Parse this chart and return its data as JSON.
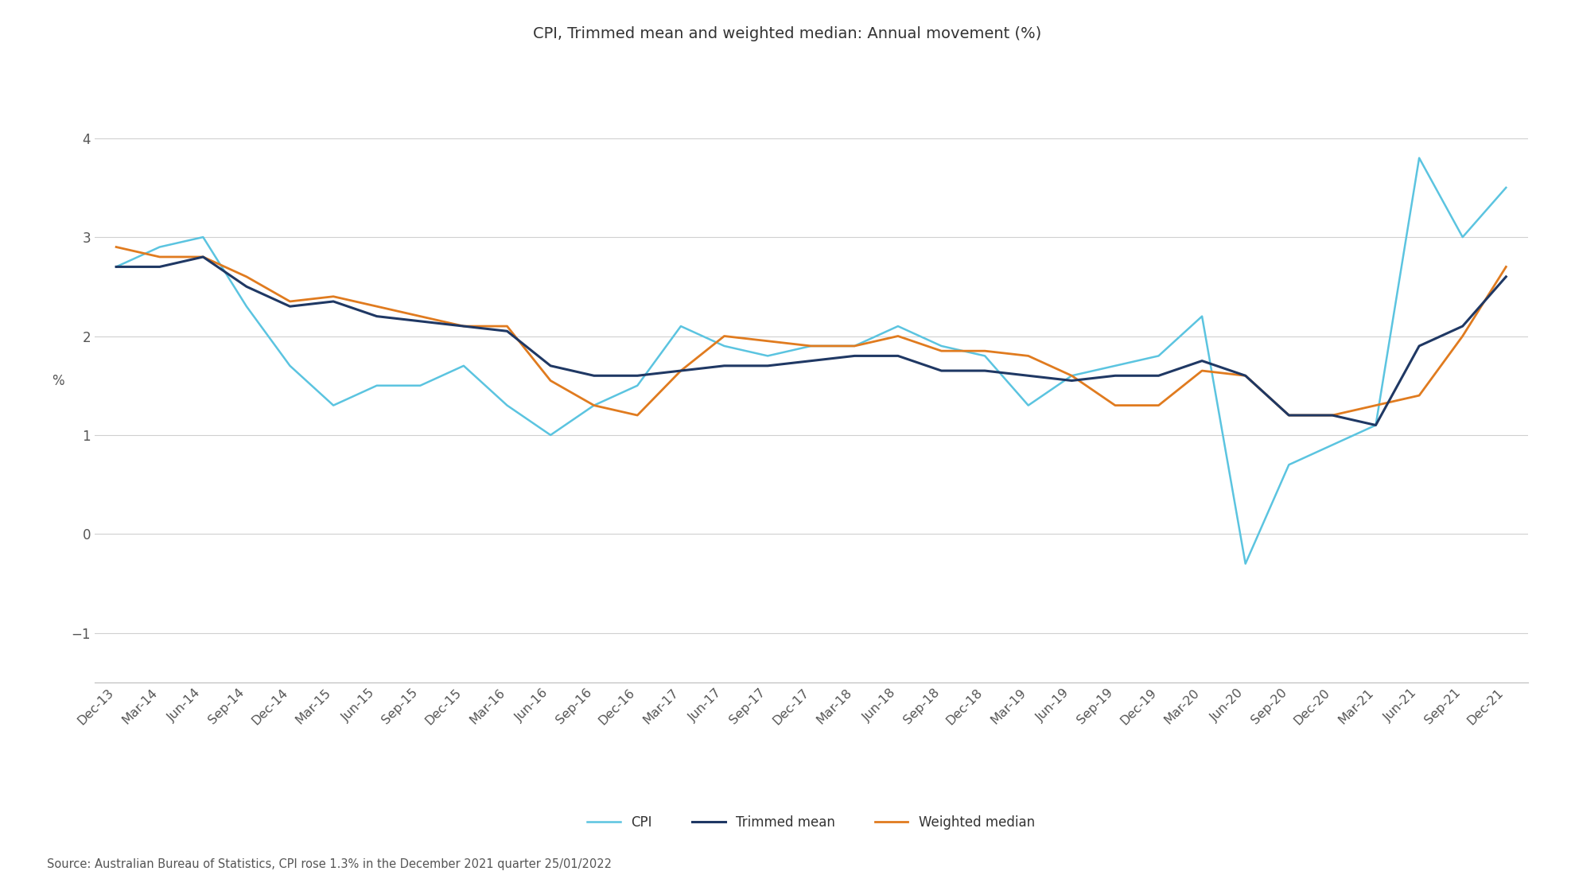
{
  "title": "CPI, Trimmed mean and weighted median: Annual movement (%)",
  "ylabel": "%",
  "source": "Source: Australian Bureau of Statistics, CPI rose 1.3% in the December 2021 quarter 25/01/2022",
  "ylim": [
    -1.5,
    4.6
  ],
  "yticks": [
    -1,
    0,
    1,
    2,
    3,
    4
  ],
  "background_color": "#ffffff",
  "grid_color": "#d0d0d0",
  "cpi_color": "#5bc4e0",
  "trimmed_color": "#1f3864",
  "weighted_color": "#e07b1f",
  "labels": [
    "Dec-13",
    "Mar-14",
    "Jun-14",
    "Sep-14",
    "Dec-14",
    "Mar-15",
    "Jun-15",
    "Sep-15",
    "Dec-15",
    "Mar-16",
    "Jun-16",
    "Sep-16",
    "Dec-16",
    "Mar-17",
    "Jun-17",
    "Sep-17",
    "Dec-17",
    "Mar-18",
    "Jun-18",
    "Sep-18",
    "Dec-18",
    "Mar-19",
    "Jun-19",
    "Sep-19",
    "Dec-19",
    "Mar-20",
    "Jun-20",
    "Sep-20",
    "Dec-20",
    "Mar-21",
    "Jun-21",
    "Sep-21",
    "Dec-21"
  ],
  "cpi": [
    2.7,
    2.9,
    3.0,
    2.3,
    1.7,
    1.3,
    1.5,
    1.5,
    1.7,
    1.3,
    1.0,
    1.3,
    1.5,
    2.1,
    1.9,
    1.8,
    1.9,
    1.9,
    2.1,
    1.9,
    1.8,
    1.3,
    1.6,
    1.7,
    1.8,
    2.2,
    -0.3,
    0.7,
    0.9,
    1.1,
    3.8,
    3.0,
    3.5
  ],
  "trimmed_mean": [
    2.7,
    2.7,
    2.8,
    2.5,
    2.3,
    2.35,
    2.2,
    2.15,
    2.1,
    2.05,
    1.7,
    1.6,
    1.6,
    1.65,
    1.7,
    1.7,
    1.75,
    1.8,
    1.8,
    1.65,
    1.65,
    1.6,
    1.55,
    1.6,
    1.6,
    1.75,
    1.6,
    1.2,
    1.2,
    1.1,
    1.9,
    2.1,
    2.6
  ],
  "weighted_median": [
    2.9,
    2.8,
    2.8,
    2.6,
    2.35,
    2.4,
    2.3,
    2.2,
    2.1,
    2.1,
    1.55,
    1.3,
    1.2,
    1.65,
    2.0,
    1.95,
    1.9,
    1.9,
    2.0,
    1.85,
    1.85,
    1.8,
    1.6,
    1.3,
    1.3,
    1.65,
    1.6,
    1.2,
    1.2,
    1.3,
    1.4,
    2.0,
    2.7
  ]
}
